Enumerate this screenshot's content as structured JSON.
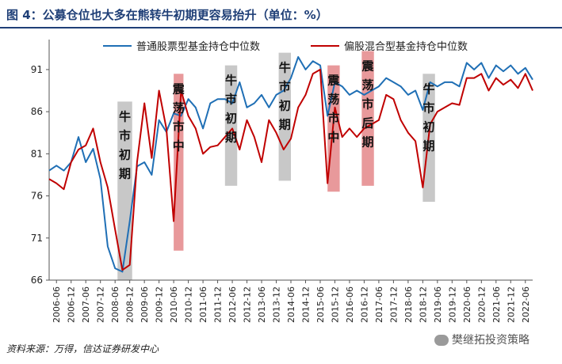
{
  "title": "图 4：公募仓位也大多在熊转牛初期更容易抬升（单位：%）",
  "source": "资料来源：万得，信达证券研发中心",
  "watermark": "樊继拓投资策略",
  "colors": {
    "series_blue": "#1f6fb5",
    "series_red": "#c00000",
    "box_gray": "#c8c8c8",
    "box_red": "#e8999b",
    "title_color": "#1f3f77"
  },
  "chart_data": {
    "type": "line",
    "title": "",
    "xlabel": "",
    "ylabel": "",
    "ylim": [
      66,
      94
    ],
    "yticks": [
      66,
      71,
      76,
      81,
      86,
      91
    ],
    "legend_position": "top",
    "grid": false,
    "x_ticks": [
      "2006-06",
      "2006-12",
      "2007-06",
      "2007-12",
      "2008-06",
      "2008-12",
      "2009-06",
      "2009-12",
      "2010-06",
      "2010-12",
      "2011-06",
      "2011-12",
      "2012-06",
      "2012-12",
      "2013-06",
      "2013-12",
      "2014-06",
      "2014-12",
      "2015-06",
      "2015-12",
      "2016-06",
      "2016-12",
      "2017-06",
      "2017-12",
      "2018-06",
      "2018-12",
      "2019-06",
      "2019-12",
      "2020-06",
      "2020-12",
      "2021-06",
      "2021-12",
      "2022-06"
    ],
    "x_start": "2006-03",
    "x_end": "2022-09",
    "series": [
      {
        "name": "普通股票型基金持仓中位数",
        "color": "#1f6fb5",
        "points": [
          [
            "2006-03",
            79.0
          ],
          [
            "2006-06",
            79.6
          ],
          [
            "2006-09",
            79.0
          ],
          [
            "2006-12",
            80.0
          ],
          [
            "2007-03",
            83.0
          ],
          [
            "2007-06",
            80.0
          ],
          [
            "2007-09",
            81.6
          ],
          [
            "2007-12",
            78.0
          ],
          [
            "2008-03",
            70.0
          ],
          [
            "2008-06",
            67.4
          ],
          [
            "2008-09",
            67.0
          ],
          [
            "2008-12",
            73.0
          ],
          [
            "2009-03",
            79.5
          ],
          [
            "2009-06",
            80.0
          ],
          [
            "2009-09",
            78.5
          ],
          [
            "2009-12",
            85.0
          ],
          [
            "2010-03",
            83.6
          ],
          [
            "2010-06",
            85.8
          ],
          [
            "2010-09",
            85.5
          ],
          [
            "2010-12",
            87.5
          ],
          [
            "2011-03",
            86.5
          ],
          [
            "2011-06",
            84.0
          ],
          [
            "2011-09",
            87.0
          ],
          [
            "2011-12",
            87.5
          ],
          [
            "2012-03",
            87.5
          ],
          [
            "2012-06",
            87.0
          ],
          [
            "2012-09",
            89.5
          ],
          [
            "2012-12",
            86.5
          ],
          [
            "2013-03",
            87.0
          ],
          [
            "2013-06",
            88.0
          ],
          [
            "2013-09",
            86.5
          ],
          [
            "2013-12",
            88.0
          ],
          [
            "2014-03",
            88.5
          ],
          [
            "2014-06",
            90.0
          ],
          [
            "2014-09",
            92.5
          ],
          [
            "2014-12",
            91.0
          ],
          [
            "2015-03",
            92.0
          ],
          [
            "2015-06",
            91.5
          ],
          [
            "2015-09",
            85.5
          ],
          [
            "2015-12",
            89.5
          ],
          [
            "2016-03",
            89.0
          ],
          [
            "2016-06",
            88.0
          ],
          [
            "2016-09",
            88.5
          ],
          [
            "2016-12",
            88.0
          ],
          [
            "2017-03",
            88.5
          ],
          [
            "2017-06",
            89.0
          ],
          [
            "2017-09",
            90.0
          ],
          [
            "2017-12",
            89.5
          ],
          [
            "2018-03",
            89.0
          ],
          [
            "2018-06",
            88.0
          ],
          [
            "2018-09",
            88.5
          ],
          [
            "2018-12",
            86.2
          ],
          [
            "2019-03",
            89.5
          ],
          [
            "2019-06",
            89.0
          ],
          [
            "2019-09",
            89.5
          ],
          [
            "2019-12",
            89.5
          ],
          [
            "2020-03",
            89.0
          ],
          [
            "2020-06",
            91.8
          ],
          [
            "2020-09",
            91.0
          ],
          [
            "2020-12",
            91.8
          ],
          [
            "2021-03",
            90.0
          ],
          [
            "2021-06",
            91.5
          ],
          [
            "2021-09",
            90.8
          ],
          [
            "2021-12",
            91.5
          ],
          [
            "2022-03",
            90.5
          ],
          [
            "2022-06",
            91.2
          ],
          [
            "2022-09",
            89.8
          ]
        ]
      },
      {
        "name": "偏股混合型基金持仓中位数",
        "color": "#c00000",
        "points": [
          [
            "2006-03",
            78.0
          ],
          [
            "2006-06",
            77.5
          ],
          [
            "2006-09",
            76.8
          ],
          [
            "2006-12",
            80.0
          ],
          [
            "2007-03",
            81.5
          ],
          [
            "2007-06",
            82.0
          ],
          [
            "2007-09",
            84.0
          ],
          [
            "2007-12",
            80.0
          ],
          [
            "2008-03",
            77.0
          ],
          [
            "2008-06",
            72.0
          ],
          [
            "2008-09",
            67.2
          ],
          [
            "2008-12",
            67.8
          ],
          [
            "2009-03",
            80.0
          ],
          [
            "2009-06",
            87.0
          ],
          [
            "2009-09",
            80.5
          ],
          [
            "2009-12",
            88.5
          ],
          [
            "2010-03",
            84.0
          ],
          [
            "2010-06",
            73.0
          ],
          [
            "2010-09",
            88.5
          ],
          [
            "2010-12",
            85.5
          ],
          [
            "2011-03",
            84.0
          ],
          [
            "2011-06",
            81.0
          ],
          [
            "2011-09",
            81.8
          ],
          [
            "2011-12",
            82.0
          ],
          [
            "2012-03",
            83.0
          ],
          [
            "2012-06",
            84.0
          ],
          [
            "2012-09",
            81.5
          ],
          [
            "2012-12",
            85.0
          ],
          [
            "2013-03",
            83.0
          ],
          [
            "2013-06",
            80.0
          ],
          [
            "2013-09",
            85.0
          ],
          [
            "2013-12",
            83.5
          ],
          [
            "2014-03",
            81.5
          ],
          [
            "2014-06",
            82.8
          ],
          [
            "2014-09",
            86.5
          ],
          [
            "2014-12",
            88.0
          ],
          [
            "2015-03",
            90.5
          ],
          [
            "2015-06",
            91.0
          ],
          [
            "2015-09",
            77.5
          ],
          [
            "2015-12",
            86.5
          ],
          [
            "2016-03",
            83.0
          ],
          [
            "2016-06",
            84.0
          ],
          [
            "2016-09",
            83.0
          ],
          [
            "2016-12",
            84.0
          ],
          [
            "2017-03",
            84.5
          ],
          [
            "2017-06",
            85.0
          ],
          [
            "2017-09",
            88.0
          ],
          [
            "2017-12",
            87.5
          ],
          [
            "2018-03",
            85.0
          ],
          [
            "2018-06",
            83.5
          ],
          [
            "2018-09",
            82.5
          ],
          [
            "2018-12",
            77.0
          ],
          [
            "2019-03",
            84.5
          ],
          [
            "2019-06",
            86.0
          ],
          [
            "2019-09",
            86.5
          ],
          [
            "2019-12",
            87.0
          ],
          [
            "2020-03",
            86.8
          ],
          [
            "2020-06",
            90.0
          ],
          [
            "2020-09",
            90.0
          ],
          [
            "2020-12",
            90.5
          ],
          [
            "2021-03",
            88.5
          ],
          [
            "2021-06",
            90.0
          ],
          [
            "2021-09",
            89.2
          ],
          [
            "2021-12",
            89.8
          ],
          [
            "2022-03",
            88.8
          ],
          [
            "2022-06",
            90.5
          ],
          [
            "2022-09",
            88.5
          ]
        ]
      }
    ],
    "annotations": [
      {
        "label": "牛市初期",
        "color": "gray",
        "start": "2008-07",
        "end": "2009-01",
        "top": 87.2,
        "bottom": 66
      },
      {
        "label": "震荡市中",
        "color": "red",
        "start": "2010-06",
        "end": "2010-10",
        "top": 90.5,
        "bottom": 69.5
      },
      {
        "label": "牛市初期",
        "color": "gray",
        "start": "2012-03",
        "end": "2012-08",
        "top": 91.5,
        "bottom": 77.2
      },
      {
        "label": "牛市初期",
        "color": "gray",
        "start": "2014-01",
        "end": "2014-06",
        "top": 93.0,
        "bottom": 77.8
      },
      {
        "label": "震荡市中",
        "color": "red",
        "start": "2015-09",
        "end": "2016-02",
        "top": 91.5,
        "bottom": 76.5
      },
      {
        "label": "震荡市后期",
        "color": "red",
        "start": "2016-11",
        "end": "2017-04",
        "top": 93.2,
        "bottom": 77.2
      },
      {
        "label": "牛市初期",
        "color": "gray",
        "start": "2018-12",
        "end": "2019-05",
        "top": 90.5,
        "bottom": 75.3
      }
    ]
  }
}
